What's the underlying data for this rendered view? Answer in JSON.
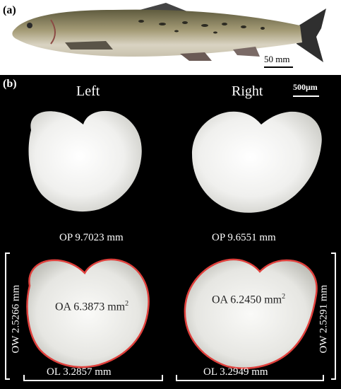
{
  "panel_a": {
    "label": "(a)",
    "scale_bar": "50 mm",
    "colors": {
      "fish_back": "#6e6a4a",
      "fish_belly": "#d8d2c0",
      "fins": "#3a3a3a"
    }
  },
  "panel_b": {
    "label": "(b)",
    "scale_bar": "500μm",
    "left_title": "Left",
    "right_title": "Right",
    "left": {
      "op": "OP  9.7023 mm",
      "oa_text": "OA 6.3873 mm",
      "oa_sup": "2",
      "ow": "OW 2.5266 mm",
      "ol": "OL 3.2857 mm"
    },
    "right": {
      "op": "OP  9.6551 mm",
      "oa_text": "OA 6.2450 mm",
      "oa_sup": "2",
      "ow": "OW 2.5291 mm",
      "ol": "OL 3.2949 mm"
    },
    "colors": {
      "background": "#000000",
      "otolith": "#f2f2f0",
      "outline": "#e0403c"
    }
  }
}
